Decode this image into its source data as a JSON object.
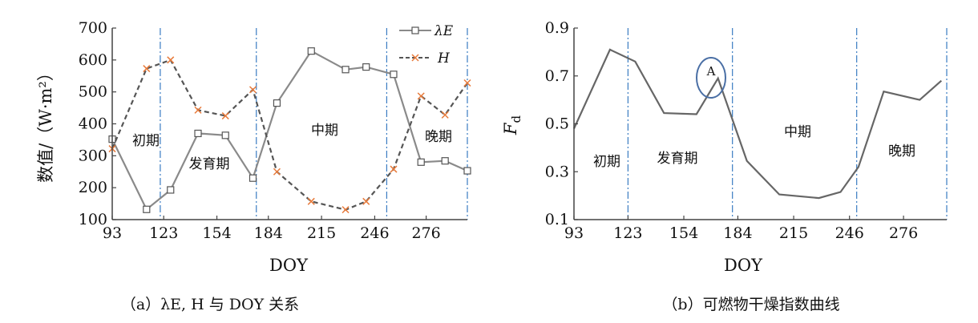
{
  "charts": [
    {
      "type": "line",
      "caption": "（a）λE, H 与 DOY 关系",
      "xlabel": "DOY",
      "ylabel": "数值/（W·m²）",
      "x_ticks": [
        93,
        123,
        154,
        184,
        215,
        246,
        276
      ],
      "y_ticks": [
        100,
        200,
        300,
        400,
        500,
        600,
        700
      ],
      "xlim": [
        93,
        300
      ],
      "ylim": [
        100,
        700
      ],
      "phase_lines": [
        121,
        177,
        253,
        300
      ],
      "phases": [
        "初期",
        "发育期",
        "中期",
        "晚期"
      ],
      "legend_position": "top-right",
      "series": [
        {
          "name": "λE",
          "color": "#8a8a8a",
          "marker": "square",
          "x": [
            93,
            113,
            127,
            143,
            159,
            175,
            189,
            209,
            229,
            241,
            257,
            273,
            287,
            302
          ],
          "y": [
            352,
            132,
            193,
            370,
            364,
            230,
            465,
            628,
            570,
            578,
            555,
            280,
            284,
            253
          ]
        },
        {
          "name": "H",
          "color": "#555555",
          "marker": "x",
          "dashed": true,
          "x": [
            93,
            113,
            127,
            143,
            159,
            175,
            189,
            209,
            229,
            241,
            257,
            273,
            287,
            302
          ],
          "y": [
            322,
            573,
            600,
            443,
            425,
            507,
            250,
            157,
            131,
            157,
            258,
            487,
            428,
            528
          ]
        }
      ]
    },
    {
      "type": "line",
      "caption": "（b）可燃物干燥指数曲线",
      "xlabel": "DOY",
      "ylabel": "F_d",
      "x_ticks": [
        93,
        123,
        154,
        184,
        215,
        246,
        276
      ],
      "y_ticks": [
        0.1,
        0.3,
        0.5,
        0.7,
        0.9
      ],
      "xlim": [
        93,
        300
      ],
      "ylim": [
        0.1,
        0.9
      ],
      "phase_lines": [
        123,
        181,
        250,
        300
      ],
      "phases": [
        "初期",
        "发育期",
        "中期",
        "晚期"
      ],
      "annotation": "A",
      "series": [
        {
          "name": "",
          "color": "#666666",
          "x": [
            93,
            113,
            127,
            143,
            161,
            173,
            189,
            207,
            229,
            241,
            251,
            265,
            285,
            297
          ],
          "y": [
            0.48,
            0.81,
            0.76,
            0.545,
            0.54,
            0.69,
            0.345,
            0.205,
            0.19,
            0.215,
            0.32,
            0.635,
            0.6,
            0.68
          ]
        }
      ]
    }
  ]
}
